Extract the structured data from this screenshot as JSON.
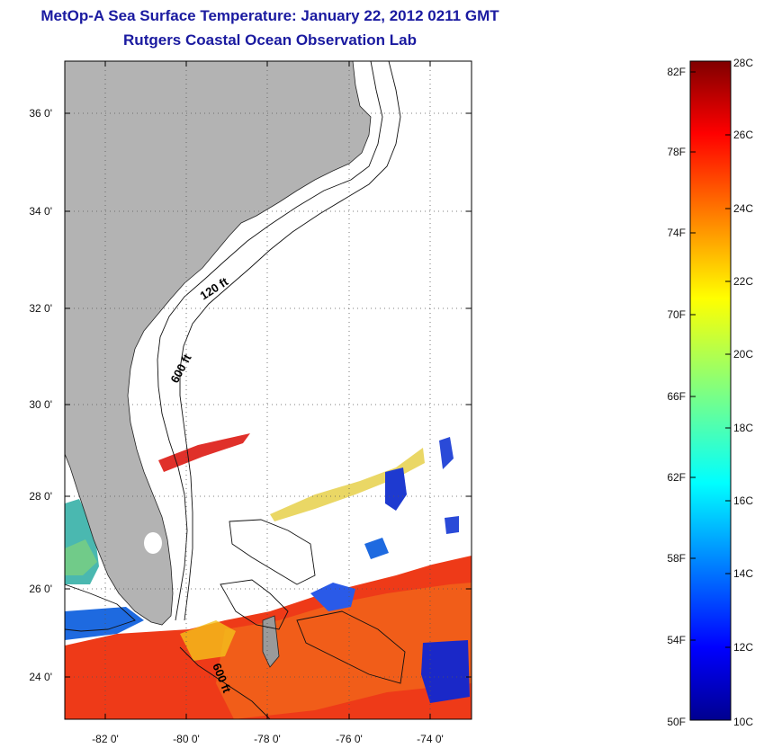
{
  "header": {
    "title": "MetOp-A Sea Surface Temperature:  January 22, 2012 0211 GMT",
    "subtitle": "Rutgers Coastal Ocean Observation Lab"
  },
  "map": {
    "lon_range": [
      -83,
      -73
    ],
    "lat_range": [
      23,
      37
    ],
    "lon_ticks": [
      "-82 0'",
      "-80 0'",
      "-78 0'",
      "-76 0'",
      "-74 0'"
    ],
    "lat_ticks": [
      "36 0'",
      "34 0'",
      "32 0'",
      "30 0'",
      "28 0'",
      "26 0'",
      "24 0'"
    ],
    "contour_labels": [
      "120 ft",
      "600 ft",
      "600 ft"
    ],
    "colors": {
      "land": "#b3b3b3",
      "ocean_no_data": "#ffffff",
      "title": "#1a1aa0"
    }
  },
  "colorbar": {
    "fahrenheit_labels": [
      "82F",
      "78F",
      "74F",
      "70F",
      "66F",
      "62F",
      "58F",
      "54F",
      "50F"
    ],
    "celsius_labels": [
      "28C",
      "26C",
      "24C",
      "22C",
      "20C",
      "18C",
      "16C",
      "14C",
      "12C",
      "10C"
    ],
    "range_c": [
      10,
      28
    ],
    "colormap": "jet"
  }
}
